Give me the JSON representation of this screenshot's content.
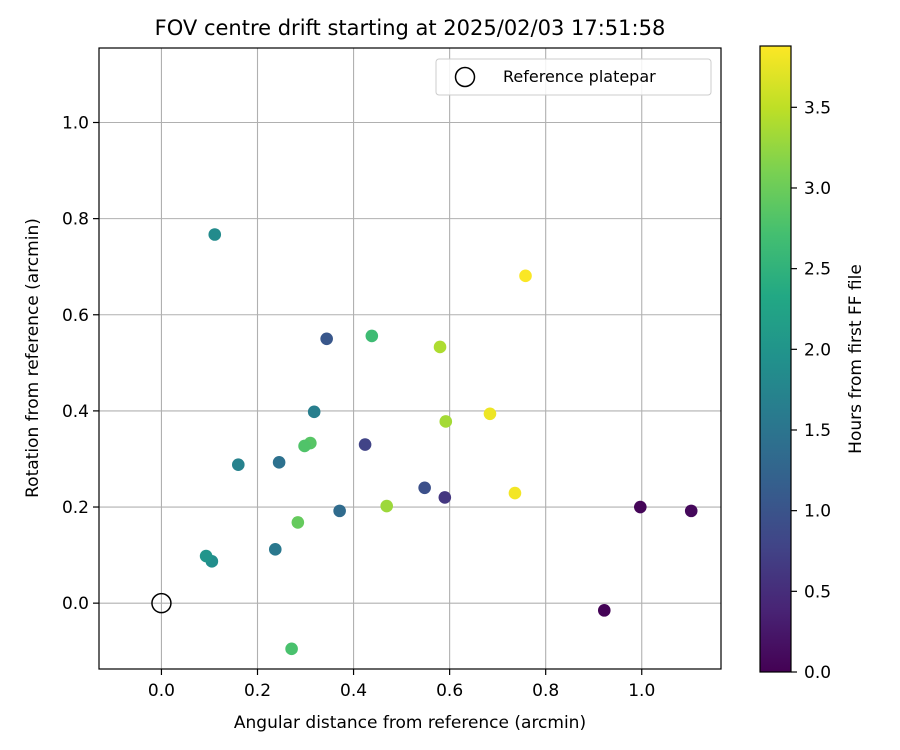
{
  "chart_data": {
    "type": "scatter",
    "title": "FOV centre drift starting at 2025/02/03 17:51:58",
    "xlabel": "Angular distance from reference (arcmin)",
    "ylabel": "Rotation from reference (arcmin)",
    "xlim": [
      -0.13,
      1.165
    ],
    "ylim": [
      -0.137,
      1.155
    ],
    "xticks": [
      "0.0",
      "0.2",
      "0.4",
      "0.6",
      "0.8",
      "1.0"
    ],
    "yticks": [
      "0.0",
      "0.2",
      "0.4",
      "0.6",
      "0.8",
      "1.0"
    ],
    "grid": true,
    "legend": {
      "placement": "top-right",
      "entries": [
        "Reference platepar"
      ]
    },
    "reference_point": {
      "x": 0.0,
      "y": 0.0,
      "label": "Reference platepar"
    },
    "colorbar": {
      "label": "Hours from first FF file",
      "colormap": "viridis",
      "range": [
        0.0,
        3.88
      ],
      "ticks": [
        "0.0",
        "0.5",
        "1.0",
        "1.5",
        "2.0",
        "2.5",
        "3.0",
        "3.5"
      ]
    },
    "series": [
      {
        "points": [
          {
            "x": 0.922,
            "y": -0.015,
            "c": 0.02
          },
          {
            "x": 0.997,
            "y": 0.2,
            "c": 0.05
          },
          {
            "x": 1.103,
            "y": 0.192,
            "c": 0.08
          },
          {
            "x": 0.59,
            "y": 0.22,
            "c": 0.62
          },
          {
            "x": 0.424,
            "y": 0.33,
            "c": 0.78
          },
          {
            "x": 0.548,
            "y": 0.24,
            "c": 0.95
          },
          {
            "x": 0.344,
            "y": 0.55,
            "c": 1.05
          },
          {
            "x": 0.371,
            "y": 0.192,
            "c": 1.35
          },
          {
            "x": 0.245,
            "y": 0.293,
            "c": 1.45
          },
          {
            "x": 0.237,
            "y": 0.112,
            "c": 1.55
          },
          {
            "x": 0.318,
            "y": 0.398,
            "c": 1.65
          },
          {
            "x": 0.16,
            "y": 0.288,
            "c": 1.7
          },
          {
            "x": 0.111,
            "y": 0.767,
            "c": 1.85
          },
          {
            "x": 0.105,
            "y": 0.087,
            "c": 1.9
          },
          {
            "x": 0.093,
            "y": 0.098,
            "c": 2.0
          },
          {
            "x": 0.438,
            "y": 0.556,
            "c": 2.65
          },
          {
            "x": 0.271,
            "y": -0.095,
            "c": 2.75
          },
          {
            "x": 0.31,
            "y": 0.333,
            "c": 2.85
          },
          {
            "x": 0.298,
            "y": 0.327,
            "c": 2.8
          },
          {
            "x": 0.284,
            "y": 0.168,
            "c": 2.95
          },
          {
            "x": 0.469,
            "y": 0.202,
            "c": 3.3
          },
          {
            "x": 0.592,
            "y": 0.378,
            "c": 3.35
          },
          {
            "x": 0.58,
            "y": 0.533,
            "c": 3.4
          },
          {
            "x": 0.684,
            "y": 0.394,
            "c": 3.78
          },
          {
            "x": 0.736,
            "y": 0.229,
            "c": 3.82
          },
          {
            "x": 0.758,
            "y": 0.681,
            "c": 3.86
          }
        ]
      }
    ]
  }
}
